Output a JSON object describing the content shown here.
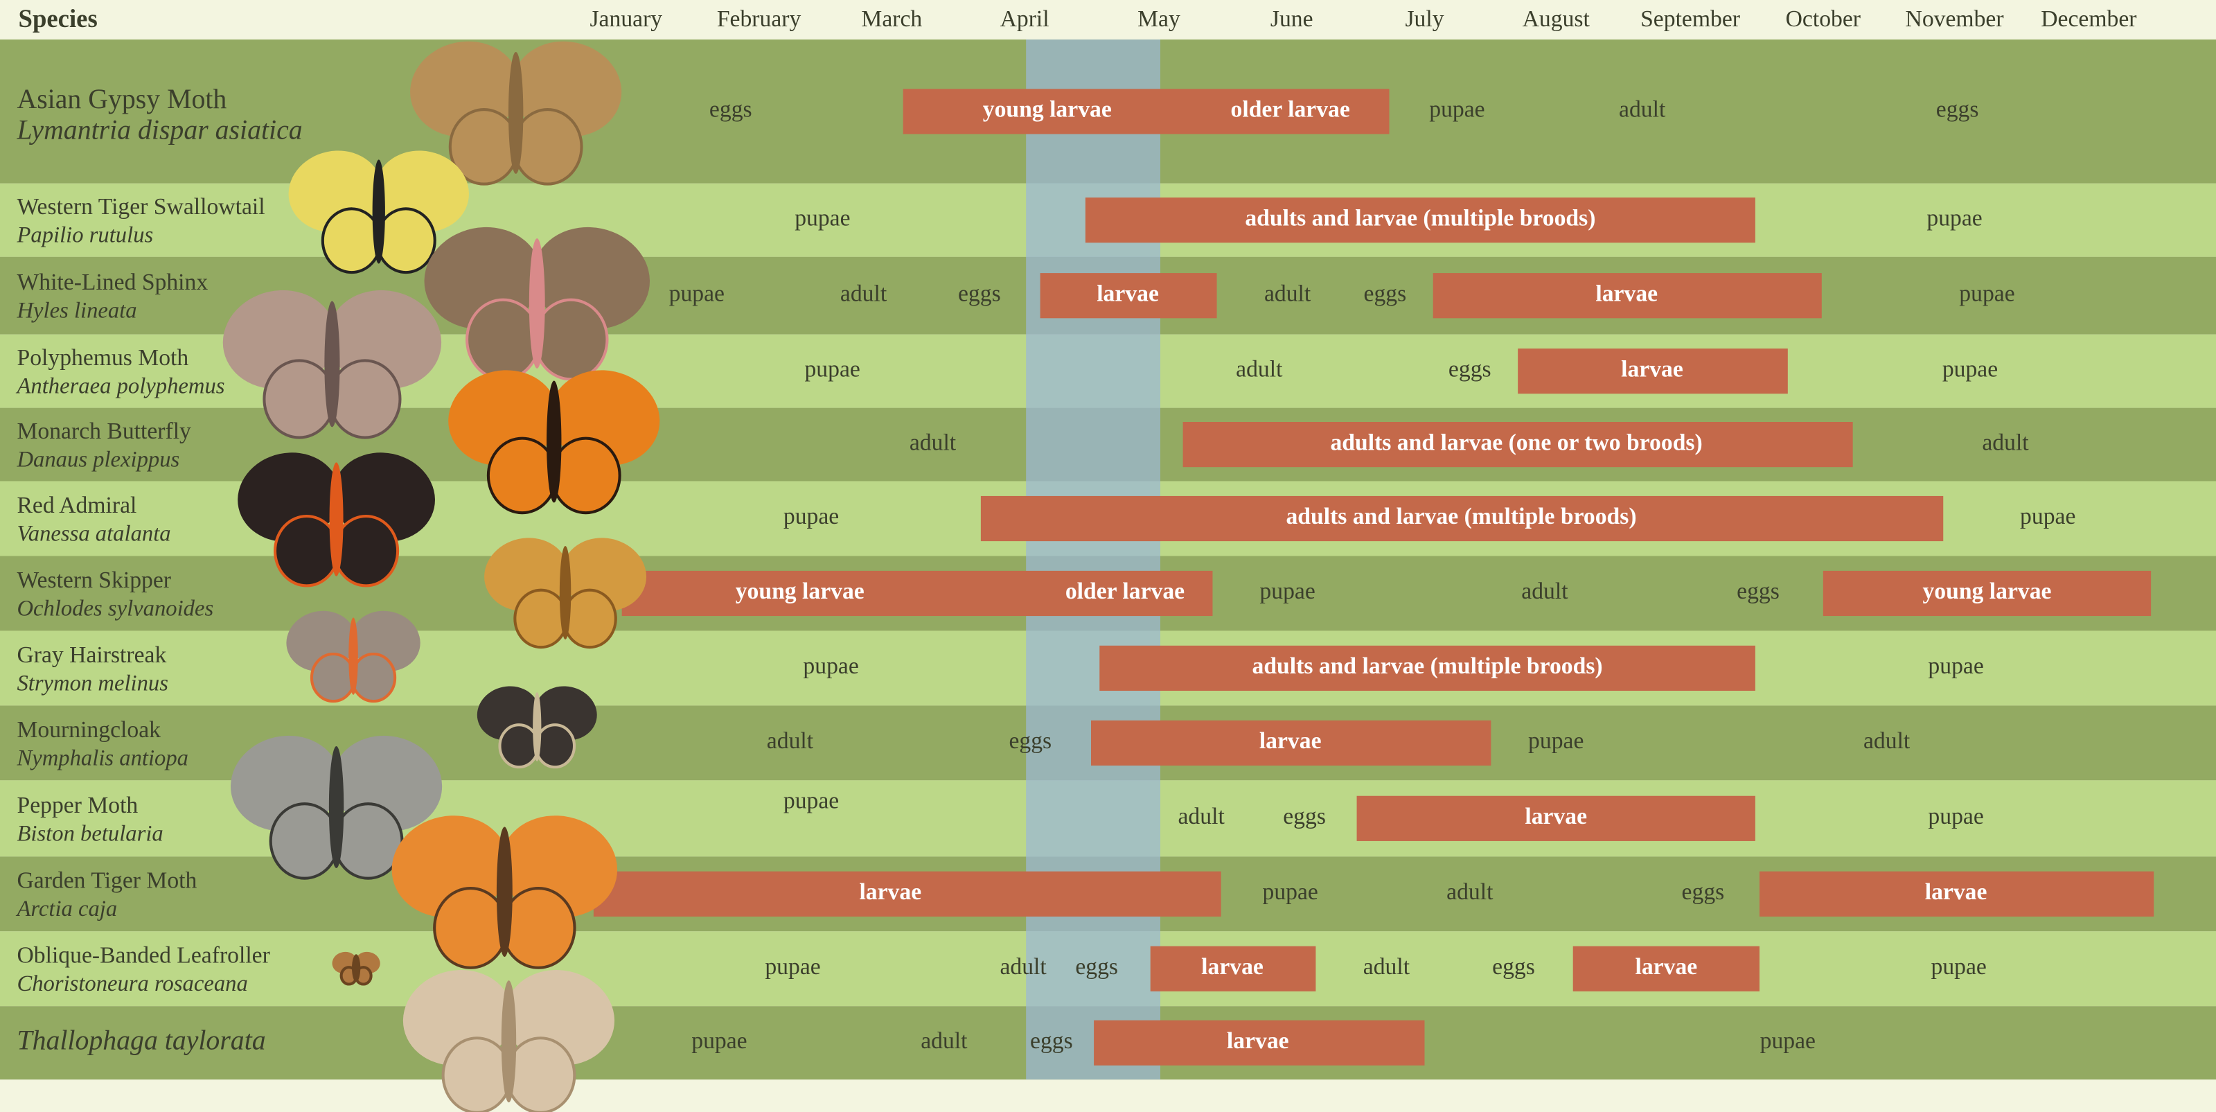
{
  "header": {
    "title": "Species",
    "months": [
      "January",
      "February",
      "March",
      "April",
      "May",
      "June",
      "July",
      "August",
      "September",
      "October",
      "November",
      "December"
    ]
  },
  "rows": [
    {
      "common_name": "Asian Gypsy Moth",
      "scientific_name": "Lymantria dispar asiatica",
      "stages": [
        "eggs",
        "young larvae",
        "older larvae",
        "pupae",
        "adult",
        "eggs"
      ]
    },
    {
      "common_name": "Western Tiger Swallowtail",
      "scientific_name": "Papilio rutulus",
      "stages": [
        "pupae",
        "adults and larvae (multiple broods)",
        "pupae"
      ]
    },
    {
      "common_name": "White-Lined Sphinx",
      "scientific_name": "Hyles lineata",
      "stages": [
        "pupae",
        "adult",
        "eggs",
        "larvae",
        "adult",
        "eggs",
        "larvae",
        "pupae"
      ]
    },
    {
      "common_name": "Polyphemus Moth",
      "scientific_name": "Antheraea polyphemus",
      "stages": [
        "pupae",
        "adult",
        "eggs",
        "larvae",
        "pupae"
      ]
    },
    {
      "common_name": "Monarch Butterfly",
      "scientific_name": "Danaus plexippus",
      "stages": [
        "adult",
        "adults and larvae (one or two broods)",
        "adult"
      ]
    },
    {
      "common_name": "Red Admiral",
      "scientific_name": "Vanessa atalanta",
      "stages": [
        "pupae",
        "adults and larvae (multiple broods)",
        "pupae"
      ]
    },
    {
      "common_name": "Western Skipper",
      "scientific_name": "Ochlodes sylvanoides",
      "stages": [
        "young larvae",
        "older larvae",
        "pupae",
        "adult",
        "eggs",
        "young larvae"
      ]
    },
    {
      "common_name": "Gray Hairstreak",
      "scientific_name": "Strymon melinus",
      "stages": [
        "pupae",
        "adults and larvae (multiple broods)",
        "pupae"
      ]
    },
    {
      "common_name": "Mourningcloak",
      "scientific_name": "Nymphalis antiopa",
      "stages": [
        "adult",
        "eggs",
        "larvae",
        "pupae",
        "adult"
      ]
    },
    {
      "common_name": "Pepper Moth",
      "scientific_name": "Biston betularia",
      "stages": [
        "pupae",
        "adult",
        "eggs",
        "larvae",
        "pupae"
      ]
    },
    {
      "common_name": "Garden Tiger Moth",
      "scientific_name": "Arctia caja",
      "stages": [
        "larvae",
        "pupae",
        "adult",
        "eggs",
        "larvae"
      ]
    },
    {
      "common_name": "Oblique-Banded Leafroller",
      "scientific_name": "Choristoneura rosaceana",
      "stages": [
        "pupae",
        "adult",
        "eggs",
        "larvae",
        "adult",
        "eggs",
        "larvae",
        "pupae"
      ]
    },
    {
      "scientific_name": "Thallophaga taylorata",
      "stages": [
        "pupae",
        "adult",
        "eggs",
        "larvae",
        "pupae"
      ]
    }
  ]
}
